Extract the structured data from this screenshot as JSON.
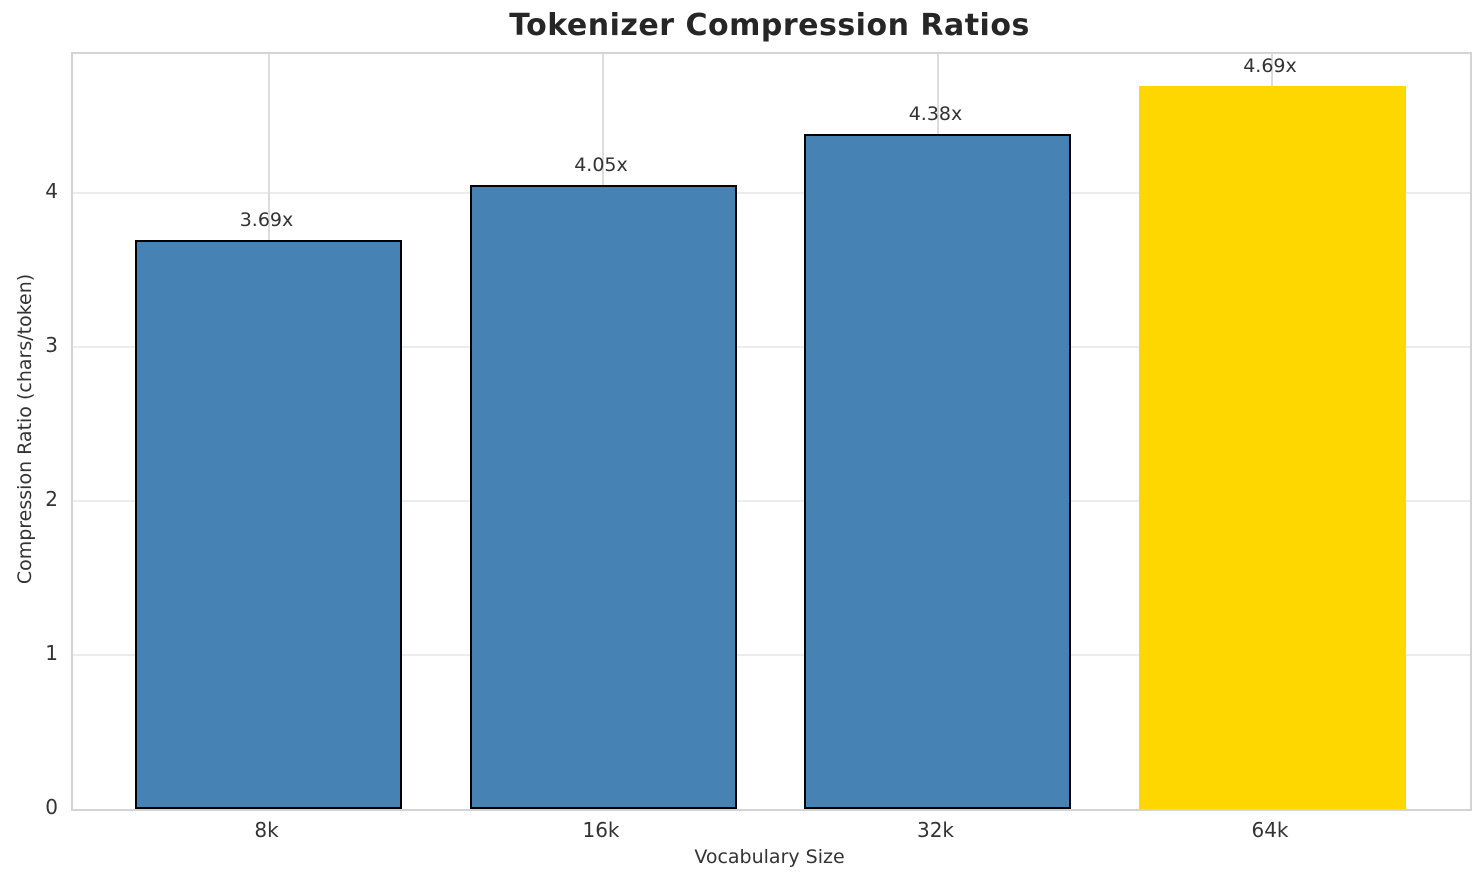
{
  "chart_data": {
    "type": "bar",
    "title": "Tokenizer Compression Ratios",
    "xlabel": "Vocabulary Size",
    "ylabel": "Compression Ratio (chars/token)",
    "categories": [
      "8k",
      "16k",
      "32k",
      "64k"
    ],
    "values": [
      3.69,
      4.05,
      4.38,
      4.69
    ],
    "bar_labels": [
      "3.69x",
      "4.05x",
      "4.38x",
      "4.69x"
    ],
    "bar_colors": [
      "#4682B4",
      "#4682B4",
      "#4682B4",
      "#FFD700"
    ],
    "bar_edge_colors": [
      "#000000",
      "#000000",
      "#000000",
      "none"
    ],
    "yticks": [
      0,
      1,
      2,
      3,
      4
    ],
    "ylim": [
      0,
      4.9
    ],
    "grid": true,
    "legend_position": "none",
    "highlight": {
      "category": "64k",
      "color": "#FFD700"
    }
  },
  "style": {
    "background": "#ffffff",
    "horizontal_grid_color": "#ececec",
    "vertical_grid_color": "#dcdcdc",
    "spine_color": "#d4d4d4",
    "title_color": "#262626",
    "text_color": "#333333",
    "bar_default_color": "#4682B4",
    "bar_highlight_color": "#FFD700",
    "bar_edge_color": "#000000"
  }
}
